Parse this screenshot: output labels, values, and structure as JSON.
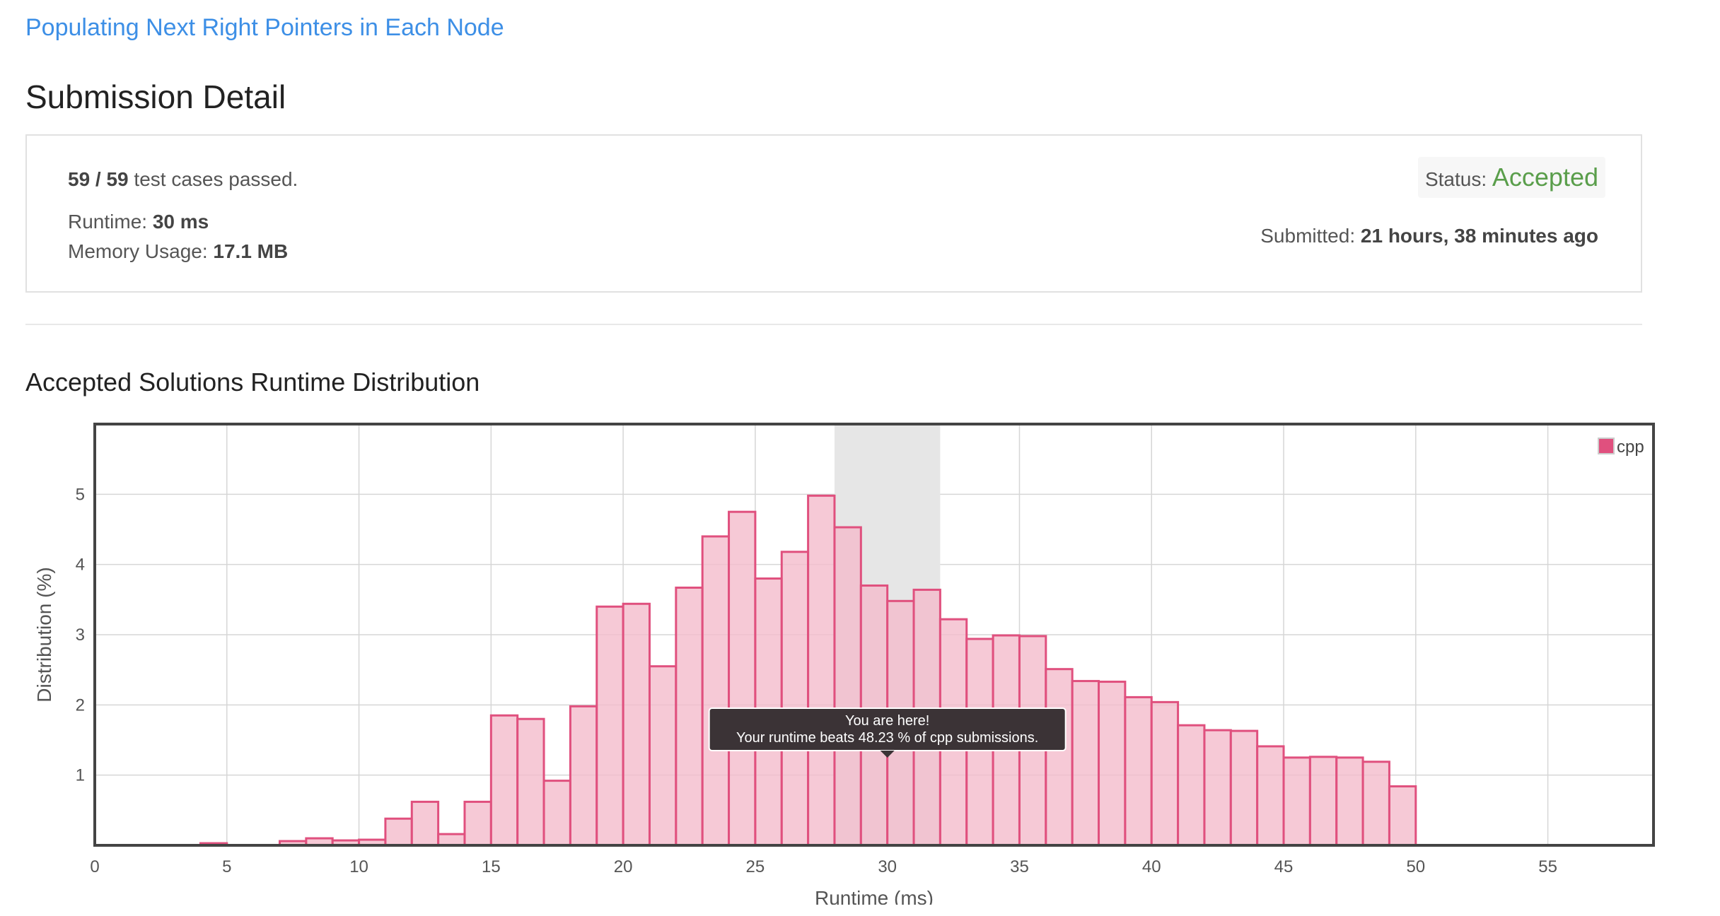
{
  "problem": {
    "title": "Populating Next Right Pointers in Each Node"
  },
  "page": {
    "title": "Submission Detail"
  },
  "detail": {
    "cases_passed": "59 / 59",
    "cases_suffix": " test cases passed.",
    "runtime_label": "Runtime: ",
    "runtime_value": "30 ms",
    "memory_label": "Memory Usage: ",
    "memory_value": "17.1 MB",
    "status_label": "Status: ",
    "status_value": "Accepted",
    "submitted_label": "Submitted: ",
    "submitted_value": "21 hours, 38 minutes ago"
  },
  "section": {
    "title": "Accepted Solutions Runtime Distribution"
  },
  "colors": {
    "bar_fill": "#f4bccc",
    "bar_stroke": "#e0507e",
    "highlight_band": "#e6e6e6",
    "grid": "#d6d6d6",
    "tooltip_bg": "#3b3336"
  },
  "chart_data": {
    "type": "bar",
    "xlabel": "Runtime (ms)",
    "ylabel": "Distribution (%)",
    "xlim": [
      0,
      59
    ],
    "ylim": [
      0,
      6
    ],
    "x_ticks": [
      0,
      5,
      10,
      15,
      20,
      25,
      30,
      35,
      40,
      45,
      50,
      55
    ],
    "y_ticks": [
      1,
      2,
      3,
      4,
      5
    ],
    "grid": true,
    "legend": {
      "position": "top-right",
      "label": "cpp"
    },
    "highlight_range": [
      28,
      32
    ],
    "tooltip": {
      "line1": "You are here!",
      "line2": "Your runtime beats 48.23 % of cpp submissions."
    },
    "series": [
      {
        "name": "cpp",
        "bin_width": 1,
        "x": [
          4,
          7,
          8,
          9,
          10,
          11,
          12,
          13,
          14,
          15,
          16,
          17,
          18,
          19,
          20,
          21,
          22,
          23,
          24,
          25,
          26,
          27,
          28,
          29,
          30,
          31,
          32,
          33,
          34,
          35,
          36,
          37,
          38,
          39,
          40,
          41,
          42,
          43,
          44,
          45,
          46,
          47,
          48,
          49
        ],
        "values": [
          0.03,
          0.06,
          0.1,
          0.07,
          0.08,
          0.38,
          0.62,
          0.16,
          0.62,
          1.85,
          1.8,
          0.92,
          1.98,
          3.4,
          3.44,
          2.55,
          3.67,
          4.4,
          4.75,
          3.8,
          4.18,
          4.98,
          4.53,
          3.7,
          3.48,
          3.64,
          3.22,
          2.94,
          2.99,
          2.98,
          2.51,
          2.34,
          2.33,
          2.11,
          2.04,
          1.71,
          1.64,
          1.63,
          1.41,
          1.25,
          1.26,
          1.25,
          1.19,
          0.84
        ]
      }
    ]
  }
}
